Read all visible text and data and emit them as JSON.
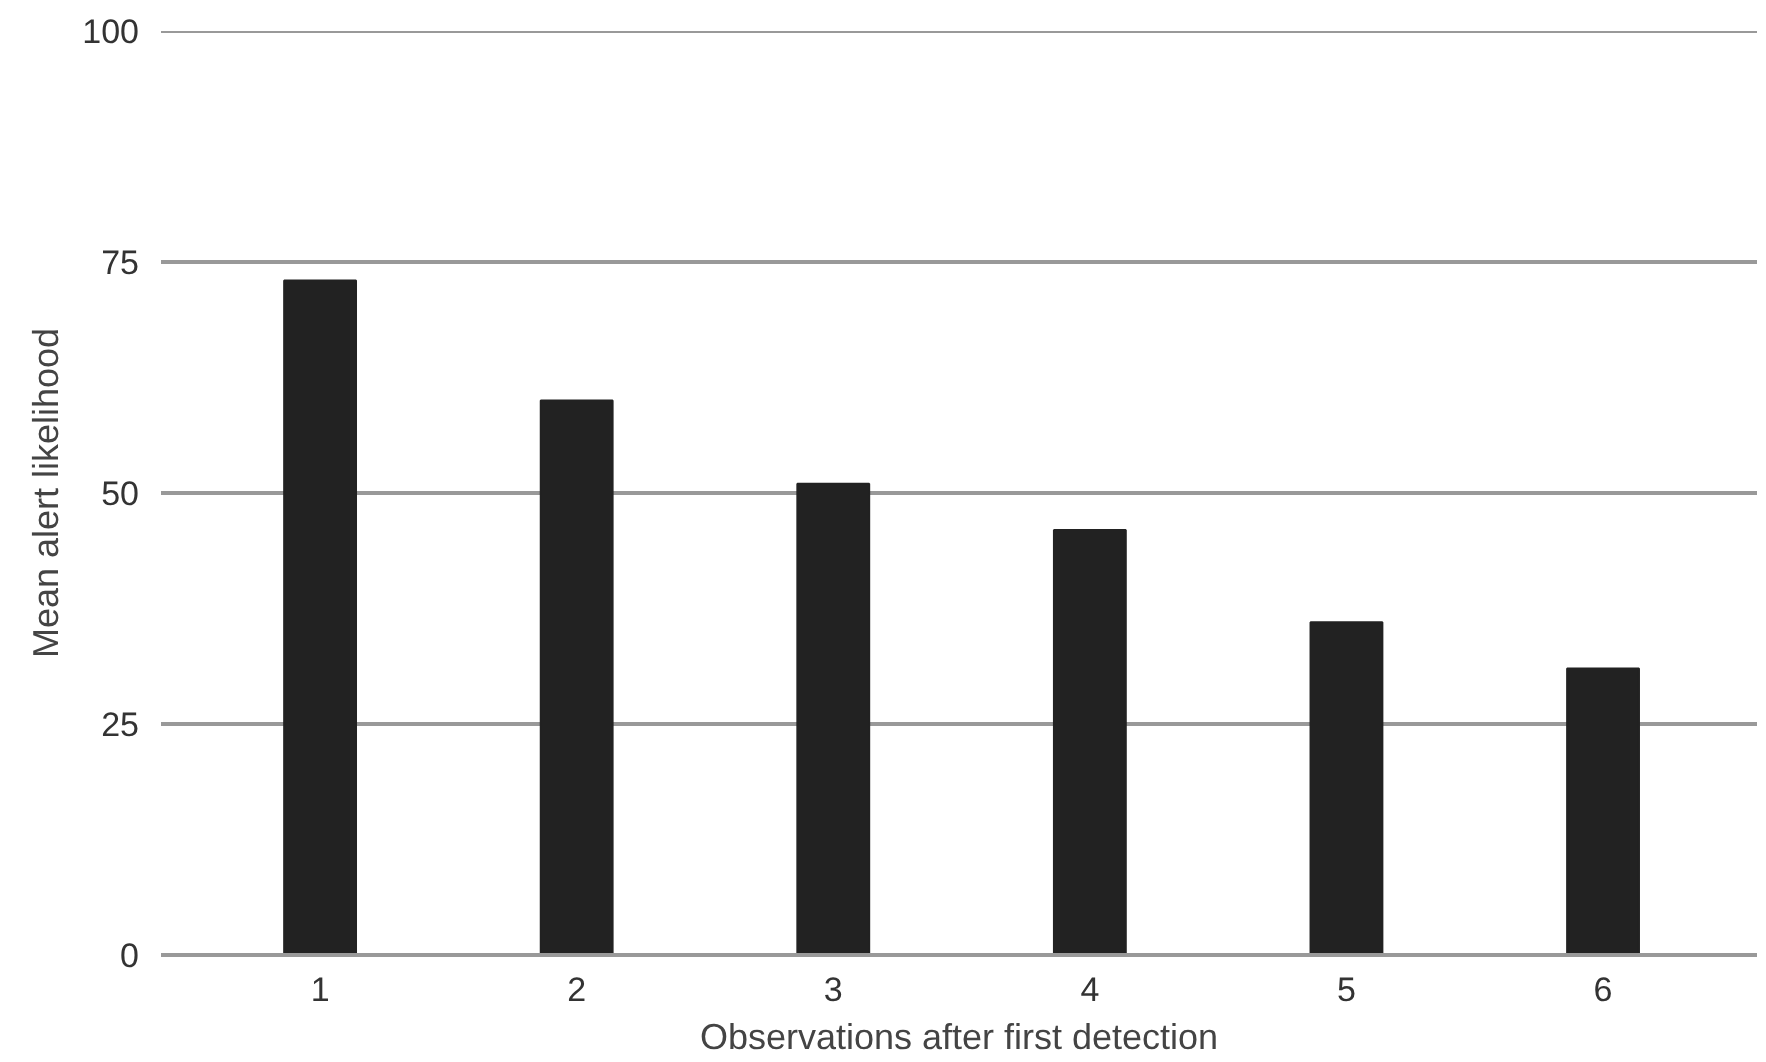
{
  "chart_data": {
    "type": "bar",
    "xlabel": "Observations after first detection",
    "ylabel": "Mean alert likelihood",
    "categories": [
      "1",
      "2",
      "3",
      "4",
      "5",
      "6"
    ],
    "values": [
      73,
      60,
      51,
      46,
      36,
      31
    ],
    "color": "#222222",
    "ylim": [
      0,
      100
    ],
    "yticks": [
      0,
      25,
      50,
      75,
      100
    ],
    "grid": "y"
  }
}
